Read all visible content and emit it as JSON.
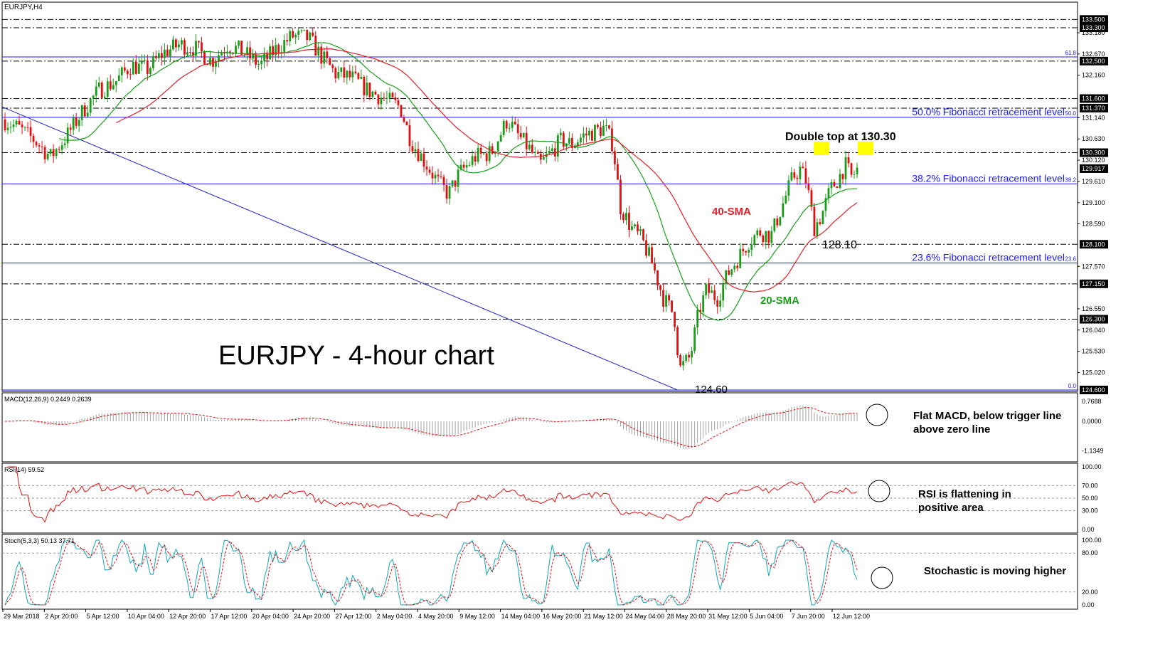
{
  "chart_data": {
    "type": "candlestick",
    "symbol_label": "EURJPY,H4",
    "title": "EURJPY - 4-hour chart",
    "colors": {
      "bull": "#1a9b1a",
      "bear": "#e01010",
      "sma20": "#16a016",
      "sma40": "#e0202a",
      "fib": "#1a1aff",
      "trend": "#2323cc",
      "macd_hist": "#a0a0a0",
      "macd_signal": "#e01010",
      "rsi": "#e01010",
      "stoch_main": "#12a6b8",
      "stoch_signal": "#e01010",
      "highlight": "#ffff00",
      "price_box": "#000000"
    },
    "price_axis": {
      "ylim": [
        124.6,
        133.5
      ],
      "ticks": [
        "133.180",
        "132.670",
        "132.160",
        "131.140",
        "130.630",
        "130.120",
        "129.610",
        "129.100",
        "128.590",
        "127.570",
        "126.550",
        "126.040",
        "125.530",
        "125.020"
      ],
      "boxed_levels": [
        "133.500",
        "133.300",
        "132.500",
        "131.600",
        "131.370",
        "130.300",
        "129.917",
        "128.100",
        "127.150",
        "126.300",
        "124.600"
      ]
    },
    "x_axis_labels": [
      "29 Mar 2018",
      "2 Apr 20:00",
      "5 Apr 12:00",
      "10 Apr 04:00",
      "12 Apr 20:00",
      "17 Apr 12:00",
      "20 Apr 04:00",
      "24 Apr 20:00",
      "27 Apr 12:00",
      "2 May 04:00",
      "4 May 20:00",
      "9 May 12:00",
      "14 May 04:00",
      "16 May 20:00",
      "21 May 12:00",
      "24 May 04:00",
      "28 May 20:00",
      "31 May 12:00",
      "5 Jun 04:00",
      "7 Jun 20:00",
      "12 Jun 12:00"
    ],
    "horizontal_levels": {
      "dashed": [
        133.5,
        133.3,
        132.5,
        131.6,
        131.37,
        130.3,
        128.1,
        127.15,
        126.3
      ],
      "fibonacci": [
        {
          "price": 132.6,
          "tag": "61.8",
          "label": ""
        },
        {
          "price": 131.15,
          "tag": "50.0",
          "label": "50.0% Fibonacci retracement level"
        },
        {
          "price": 129.55,
          "tag": "38.2",
          "label": "38.2% Fibonacci retracement level"
        },
        {
          "price": 127.65,
          "tag": "23.6",
          "label": "23.6% Fibonacci retracement level"
        },
        {
          "price": 124.6,
          "tag": "0.0",
          "label": ""
        }
      ]
    },
    "trendline": {
      "from": [
        0,
        131.4
      ],
      "to": [
        0.628,
        124.6
      ]
    },
    "anchors": [
      [
        0.0,
        131.1
      ],
      [
        0.015,
        130.9
      ],
      [
        0.03,
        130.6
      ],
      [
        0.045,
        130.2
      ],
      [
        0.06,
        130.7
      ],
      [
        0.075,
        131.3
      ],
      [
        0.09,
        131.8
      ],
      [
        0.105,
        132.0
      ],
      [
        0.12,
        132.4
      ],
      [
        0.135,
        132.3
      ],
      [
        0.15,
        132.7
      ],
      [
        0.165,
        132.9
      ],
      [
        0.18,
        132.8
      ],
      [
        0.195,
        132.5
      ],
      [
        0.21,
        132.9
      ],
      [
        0.225,
        132.7
      ],
      [
        0.24,
        132.4
      ],
      [
        0.255,
        132.8
      ],
      [
        0.27,
        133.1
      ],
      [
        0.285,
        133.05
      ],
      [
        0.297,
        132.6
      ],
      [
        0.31,
        132.2
      ],
      [
        0.325,
        132.1
      ],
      [
        0.34,
        131.8
      ],
      [
        0.355,
        131.6
      ],
      [
        0.37,
        131.4
      ],
      [
        0.38,
        130.6
      ],
      [
        0.395,
        130.0
      ],
      [
        0.405,
        129.6
      ],
      [
        0.415,
        129.3
      ],
      [
        0.425,
        129.8
      ],
      [
        0.44,
        130.2
      ],
      [
        0.455,
        130.3
      ],
      [
        0.47,
        131.1
      ],
      [
        0.48,
        130.7
      ],
      [
        0.49,
        130.4
      ],
      [
        0.5,
        130.0
      ],
      [
        0.51,
        130.3
      ],
      [
        0.52,
        130.6
      ],
      [
        0.53,
        130.5
      ],
      [
        0.54,
        130.7
      ],
      [
        0.55,
        130.8
      ],
      [
        0.56,
        130.9
      ],
      [
        0.568,
        130.5
      ],
      [
        0.575,
        129.0
      ],
      [
        0.585,
        128.5
      ],
      [
        0.595,
        128.2
      ],
      [
        0.605,
        127.6
      ],
      [
        0.615,
        126.8
      ],
      [
        0.625,
        126.4
      ],
      [
        0.63,
        125.1
      ],
      [
        0.64,
        125.4
      ],
      [
        0.648,
        126.5
      ],
      [
        0.655,
        127.0
      ],
      [
        0.665,
        126.8
      ],
      [
        0.675,
        127.4
      ],
      [
        0.685,
        127.8
      ],
      [
        0.695,
        128.2
      ],
      [
        0.705,
        128.4
      ],
      [
        0.715,
        128.3
      ],
      [
        0.725,
        129.0
      ],
      [
        0.735,
        129.7
      ],
      [
        0.742,
        129.9
      ],
      [
        0.748,
        129.6
      ],
      [
        0.755,
        128.5
      ],
      [
        0.762,
        128.8
      ],
      [
        0.77,
        129.4
      ],
      [
        0.778,
        129.7
      ],
      [
        0.784,
        130.0
      ],
      [
        0.79,
        129.7
      ],
      [
        0.795,
        129.9
      ]
    ],
    "annotations": {
      "double_top": "Double top at 130.30",
      "low_label": "128.10",
      "bottom_label": "124.60",
      "sma40": "40-SMA",
      "sma20": "20-SMA"
    },
    "macd": {
      "header": "MACD(12,26,9) 0.2449 0.2639",
      "ticks": [
        "0.7688",
        "0.0000",
        "-1.1349"
      ],
      "note_line1": "Flat MACD, below trigger line",
      "note_line2": "above zero line"
    },
    "rsi": {
      "header": "RSI(14) 59.52",
      "ticks": [
        "100.00",
        "70.00",
        "50.00",
        "30.00",
        "0.00"
      ],
      "note_line1": "RSI is flattening in",
      "note_line2": "positive area"
    },
    "stoch": {
      "header": "Stoch(5,3,3) 50.13 37.71",
      "ticks": [
        "100.00",
        "80.00",
        "20.00",
        "0.00"
      ],
      "note": "Stochastic is moving higher"
    }
  }
}
